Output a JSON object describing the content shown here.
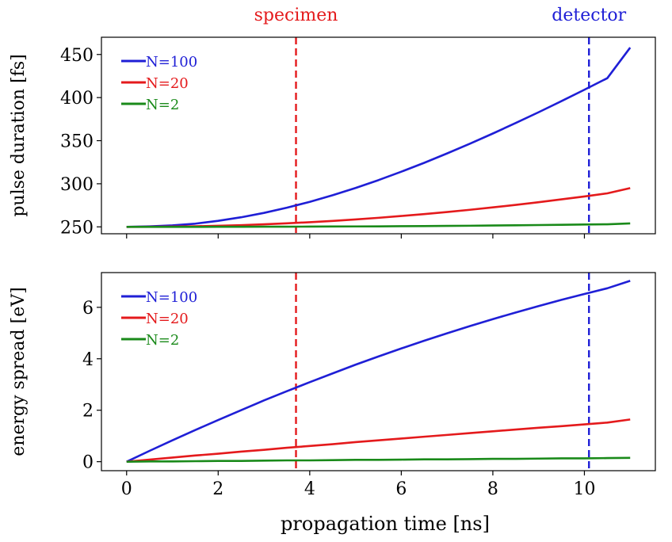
{
  "figure": {
    "annotations": [
      {
        "text": "specimen",
        "x": 3.7,
        "color": "#e41a1c"
      },
      {
        "text": "detector",
        "x": 10.1,
        "color": "#1f1fd6"
      }
    ],
    "xlabel": "propagation time [ns]"
  },
  "chart_data": [
    {
      "type": "line",
      "ylabel": "pulse duration [fs]",
      "xlim": [
        -0.55,
        11.55
      ],
      "ylim": [
        242,
        470
      ],
      "xticks": [
        0,
        2,
        4,
        6,
        8,
        10
      ],
      "yticks": [
        250,
        300,
        350,
        400,
        450
      ],
      "show_xtick_labels": false,
      "grid": false,
      "legend": "top-left",
      "vlines": [
        {
          "x": 3.7,
          "color": "#e41a1c",
          "style": "dashed"
        },
        {
          "x": 10.1,
          "color": "#1f1fd6",
          "style": "dashed"
        }
      ],
      "x": [
        0,
        0.5,
        1,
        1.5,
        2,
        2.5,
        3,
        3.5,
        4,
        4.5,
        5,
        5.5,
        6,
        6.5,
        7,
        7.5,
        8,
        8.5,
        9,
        9.5,
        10,
        10.5,
        11
      ],
      "series": [
        {
          "name": "N=100",
          "color": "#1f1fd6",
          "values": [
            250,
            250.6,
            251.7,
            253.7,
            257,
            261.1,
            266.2,
            272.2,
            279,
            286.7,
            295.1,
            304.2,
            314,
            324.3,
            335.2,
            346.5,
            358.3,
            370.5,
            383,
            395.9,
            409.1,
            422.5,
            458
          ]
        },
        {
          "name": "N=20",
          "color": "#e41a1c",
          "values": [
            250,
            250.1,
            250.3,
            250.7,
            251.3,
            252,
            253,
            254.1,
            255.4,
            256.9,
            258.6,
            260.5,
            262.6,
            264.8,
            267.2,
            269.8,
            272.6,
            275.5,
            278.6,
            281.9,
            285.3,
            288.9,
            295
          ]
        },
        {
          "name": "N=2",
          "color": "#1a8a1a",
          "values": [
            250,
            250,
            250,
            250,
            250.1,
            250.1,
            250.2,
            250.2,
            250.3,
            250.4,
            250.5,
            250.6,
            250.8,
            250.9,
            251.1,
            251.3,
            251.6,
            251.8,
            252.1,
            252.4,
            252.7,
            253,
            254
          ]
        }
      ]
    },
    {
      "type": "line",
      "ylabel": "energy spread [eV]",
      "xlim": [
        -0.55,
        11.55
      ],
      "ylim": [
        -0.35,
        7.35
      ],
      "xticks": [
        0,
        2,
        4,
        6,
        8,
        10
      ],
      "yticks": [
        0,
        2,
        4,
        6
      ],
      "show_xtick_labels": true,
      "grid": false,
      "legend": "top-left",
      "vlines": [
        {
          "x": 3.7,
          "color": "#e41a1c",
          "style": "dashed"
        },
        {
          "x": 10.1,
          "color": "#1f1fd6",
          "style": "dashed"
        }
      ],
      "x": [
        0,
        0.5,
        1,
        1.5,
        2,
        2.5,
        3,
        3.5,
        4,
        4.5,
        5,
        5.5,
        6,
        6.5,
        7,
        7.5,
        8,
        8.5,
        9,
        9.5,
        10,
        10.5,
        11
      ],
      "series": [
        {
          "name": "N=100",
          "color": "#1f1fd6",
          "values": [
            0,
            0.42,
            0.83,
            1.23,
            1.62,
            2,
            2.38,
            2.74,
            3.09,
            3.43,
            3.77,
            4.09,
            4.4,
            4.7,
            4.99,
            5.27,
            5.54,
            5.8,
            6.05,
            6.29,
            6.52,
            6.74,
            7.03
          ]
        },
        {
          "name": "N=20",
          "color": "#e41a1c",
          "values": [
            0,
            0.08,
            0.16,
            0.24,
            0.31,
            0.39,
            0.46,
            0.54,
            0.61,
            0.68,
            0.76,
            0.83,
            0.9,
            0.97,
            1.04,
            1.11,
            1.18,
            1.25,
            1.32,
            1.38,
            1.45,
            1.52,
            1.64
          ]
        },
        {
          "name": "N=2",
          "color": "#1a8a1a",
          "values": [
            0,
            0.01,
            0.01,
            0.02,
            0.03,
            0.03,
            0.04,
            0.05,
            0.05,
            0.06,
            0.07,
            0.07,
            0.08,
            0.09,
            0.09,
            0.1,
            0.11,
            0.11,
            0.12,
            0.13,
            0.13,
            0.14,
            0.15
          ]
        }
      ]
    }
  ]
}
